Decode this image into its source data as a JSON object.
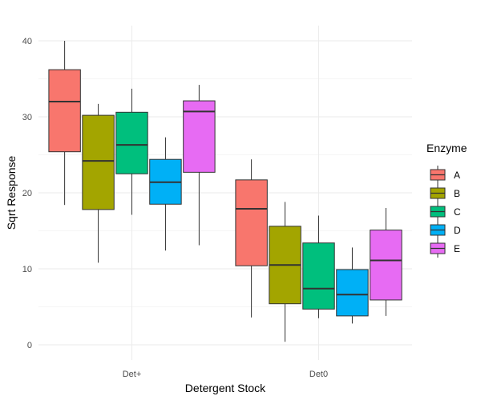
{
  "chart_data": {
    "type": "box",
    "xlabel": "Detergent Stock",
    "ylabel": "Sqrt Response",
    "categories": [
      "Det+",
      "Det0"
    ],
    "ylim": [
      -2,
      42
    ],
    "yticks": [
      0,
      10,
      20,
      30,
      40
    ],
    "grid": true,
    "legend": {
      "title": "Enzyme",
      "position": "right"
    },
    "series": [
      {
        "name": "A",
        "color": "#F8766D",
        "boxes": [
          {
            "min": 18.4,
            "q1": 25.4,
            "median": 32.0,
            "q3": 36.2,
            "max": 40.0
          },
          {
            "min": 3.6,
            "q1": 10.4,
            "median": 17.9,
            "q3": 21.7,
            "max": 24.4
          }
        ]
      },
      {
        "name": "B",
        "color": "#A3A500",
        "boxes": [
          {
            "min": 10.8,
            "q1": 17.8,
            "median": 24.2,
            "q3": 30.2,
            "max": 31.7
          },
          {
            "min": 0.4,
            "q1": 5.4,
            "median": 10.5,
            "q3": 15.6,
            "max": 18.8
          }
        ]
      },
      {
        "name": "C",
        "color": "#00BF7D",
        "boxes": [
          {
            "min": 17.1,
            "q1": 22.5,
            "median": 26.3,
            "q3": 30.6,
            "max": 33.7
          },
          {
            "min": 3.5,
            "q1": 4.7,
            "median": 7.4,
            "q3": 13.4,
            "max": 17.0
          }
        ]
      },
      {
        "name": "D",
        "color": "#00B0F6",
        "boxes": [
          {
            "min": 12.4,
            "q1": 18.5,
            "median": 21.4,
            "q3": 24.4,
            "max": 27.3
          },
          {
            "min": 2.8,
            "q1": 3.8,
            "median": 6.6,
            "q3": 9.9,
            "max": 12.8
          }
        ]
      },
      {
        "name": "E",
        "color": "#E76BF3",
        "boxes": [
          {
            "min": 13.1,
            "q1": 22.7,
            "median": 30.7,
            "q3": 32.1,
            "max": 34.2
          },
          {
            "min": 3.8,
            "q1": 5.9,
            "median": 11.1,
            "q3": 15.1,
            "max": 18.0
          }
        ]
      }
    ]
  }
}
